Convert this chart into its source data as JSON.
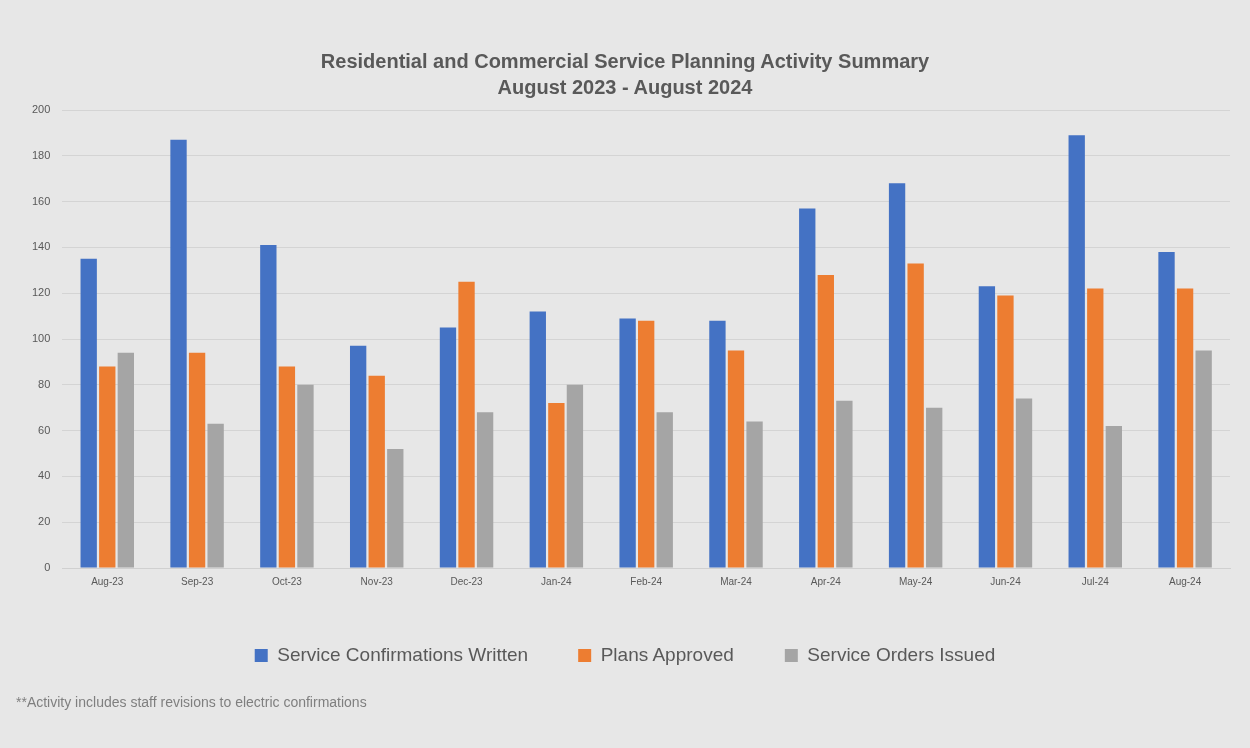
{
  "chart_data": {
    "type": "bar",
    "title": "Residential and Commercial Service Planning Activity Summary",
    "subtitle": "August 2023 - August 2024",
    "categories": [
      "Aug-23",
      "Sep-23",
      "Oct-23",
      "Nov-23",
      "Dec-23",
      "Jan-24",
      "Feb-24",
      "Mar-24",
      "Apr-24",
      "May-24",
      "Jun-24",
      "Jul-24",
      "Aug-24"
    ],
    "series": [
      {
        "name": "Service Confirmations Written",
        "color": "#4472c4",
        "values": [
          135,
          187,
          141,
          97,
          105,
          112,
          109,
          108,
          157,
          168,
          123,
          189,
          138
        ]
      },
      {
        "name": "Plans Approved",
        "color": "#ed7d31",
        "values": [
          88,
          94,
          88,
          84,
          125,
          72,
          108,
          95,
          128,
          133,
          119,
          122,
          122
        ]
      },
      {
        "name": "Service Orders Issued",
        "color": "#a5a5a5",
        "values": [
          94,
          63,
          80,
          52,
          68,
          80,
          68,
          64,
          73,
          70,
          74,
          62,
          95
        ]
      }
    ],
    "ylim": [
      0,
      200
    ],
    "yticks": [
      0,
      20,
      40,
      60,
      80,
      100,
      120,
      140,
      160,
      180,
      200
    ],
    "grid": "y",
    "legend": "bottom",
    "annotations": [
      "**Activity includes staff revisions to electric confirmations"
    ]
  }
}
